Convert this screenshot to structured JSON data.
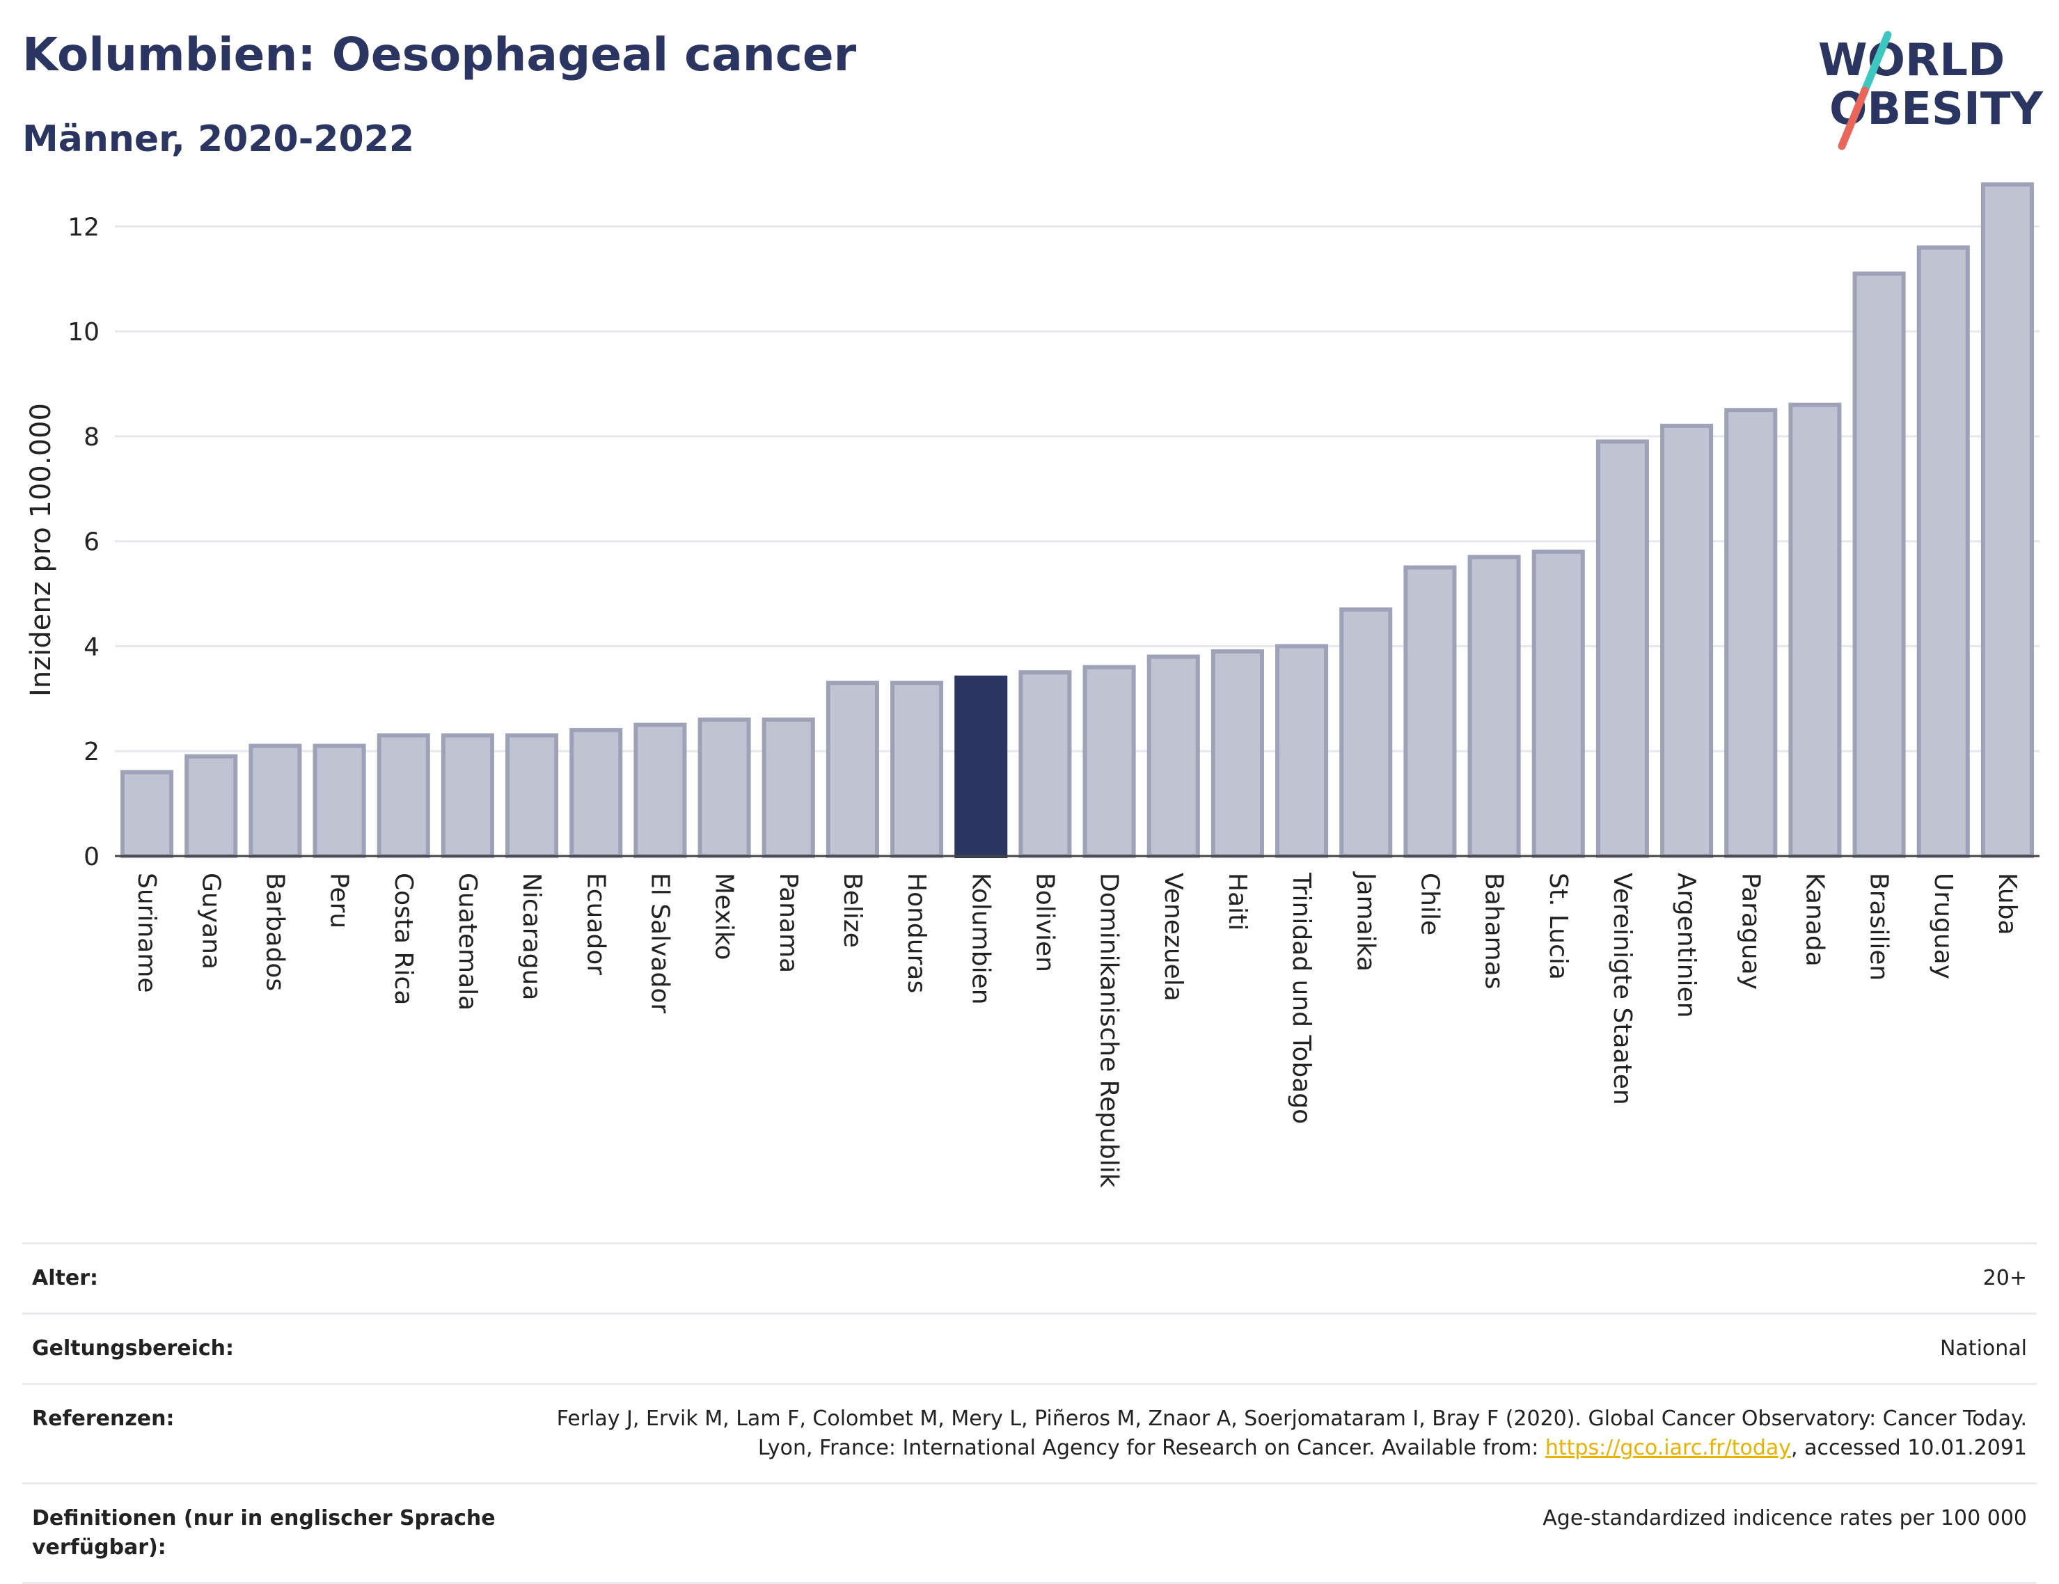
{
  "header": {
    "title": "Kolumbien: Oesophageal cancer",
    "subtitle": "Männer, 2020-2022"
  },
  "logo": {
    "line1": "WORLD",
    "line2": "OBESITY",
    "stripe_color_top": "#3ec7c1",
    "stripe_color_bottom": "#e8675a"
  },
  "colors": {
    "bar": "#c0c3d1",
    "bar_stroke": "#9da2b8",
    "highlight": "#2b3561",
    "grid": "#e6e8ee"
  },
  "chart_data": {
    "type": "bar",
    "ylabel": "Inzidenz pro 100.000",
    "ylim": [
      0,
      13
    ],
    "yticks": [
      0,
      2,
      4,
      6,
      8,
      10,
      12
    ],
    "highlight": "Kolumbien",
    "categories": [
      "Suriname",
      "Guyana",
      "Barbados",
      "Peru",
      "Costa Rica",
      "Guatemala",
      "Nicaragua",
      "Ecuador",
      "El Salvador",
      "Mexiko",
      "Panama",
      "Belize",
      "Honduras",
      "Kolumbien",
      "Bolivien",
      "Dominikanische Republik",
      "Venezuela",
      "Haiti",
      "Trinidad und Tobago",
      "Jamaika",
      "Chile",
      "Bahamas",
      "St. Lucia",
      "Vereinigte Staaten",
      "Argentinien",
      "Paraguay",
      "Kanada",
      "Brasilien",
      "Uruguay",
      "Kuba"
    ],
    "values": [
      1.6,
      1.9,
      2.1,
      2.1,
      2.3,
      2.3,
      2.3,
      2.4,
      2.5,
      2.6,
      2.6,
      3.3,
      3.3,
      3.4,
      3.5,
      3.6,
      3.8,
      3.9,
      4.0,
      4.7,
      5.5,
      5.7,
      5.8,
      7.9,
      8.2,
      8.5,
      8.6,
      11.1,
      11.6,
      12.8
    ]
  },
  "info": {
    "age_label": "Alter:",
    "age_value": "20+",
    "scope_label": "Geltungsbereich:",
    "scope_value": "National",
    "ref_label": "Referenzen:",
    "ref_text_1": "Ferlay J, Ervik M, Lam F, Colombet M, Mery L, Piñeros M, Znaor A, Soerjomataram I, Bray F (2020). Global Cancer Observatory: Cancer Today. Lyon, France: International Agency for Research on Cancer. Available from: ",
    "ref_link": "https://gco.iarc.fr/today",
    "ref_text_2": ", accessed 10.01.2091",
    "def_label": "Definitionen (nur in englischer Sprache verfügbar):",
    "def_value": "Age-standardized indicence rates per 100 000"
  }
}
